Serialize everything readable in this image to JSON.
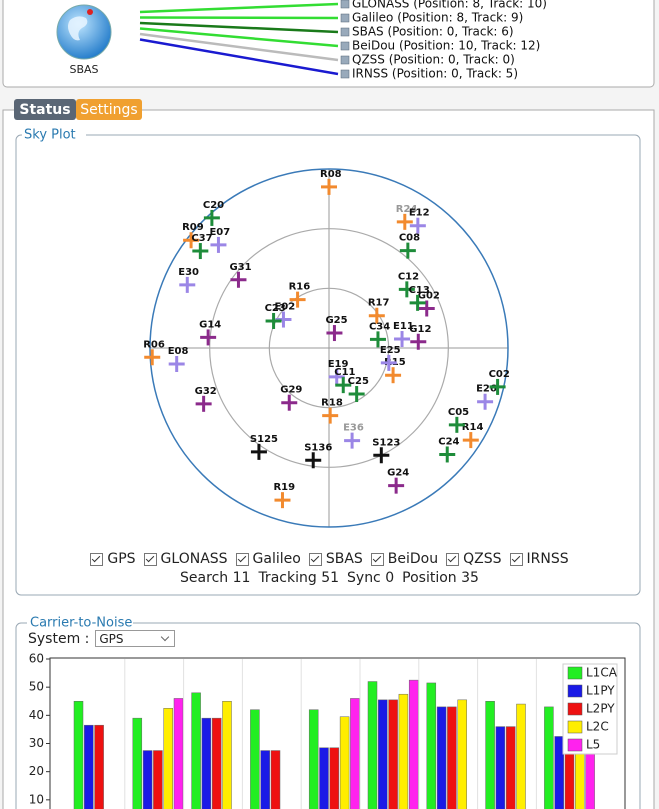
{
  "top_panel": {
    "icon_label": "SBAS",
    "systems": [
      {
        "text": "GLONASS (Position: 8, Track: 10)",
        "color": "#33dd33"
      },
      {
        "text": "Galileo (Position: 8, Track: 9)",
        "color": "#33dd33"
      },
      {
        "text": "SBAS (Position: 0, Track: 6)",
        "color": "#1a7a1a"
      },
      {
        "text": "BeiDou (Position: 10, Track: 12)",
        "color": "#33dd33"
      },
      {
        "text": "QZSS (Position: 0, Track: 0)",
        "color": "#bbbbbb"
      },
      {
        "text": "IRNSS (Position: 0, Track: 5)",
        "color": "#1a1ad0"
      }
    ]
  },
  "tabs": [
    "Status",
    "Settings"
  ],
  "status_line": [
    {
      "label": "Search",
      "value": 11
    },
    {
      "label": "Tracking",
      "value": 51
    },
    {
      "label": "Sync",
      "value": 0
    },
    {
      "label": "Position",
      "value": 35
    }
  ],
  "system_label": "System :",
  "system_value": "GPS",
  "chart_data": [
    {
      "type": "polar-scatter",
      "title": "Sky Plot",
      "elevation_rings": [
        60,
        30,
        0
      ],
      "series": [
        {
          "name": "GPS",
          "color": "#8b2a8b",
          "points": [
            {
              "name": "G31",
              "azimuth": 307,
              "elevation": 33
            },
            {
              "name": "G02",
              "azimuth": 68,
              "elevation": 37
            },
            {
              "name": "G25",
              "azimuth": 20,
              "elevation": 82
            },
            {
              "name": "G14",
              "azimuth": 275,
              "elevation": 29
            },
            {
              "name": "G12",
              "azimuth": 86,
              "elevation": 45
            },
            {
              "name": "G32",
              "azimuth": 246,
              "elevation": 21
            },
            {
              "name": "G29",
              "azimuth": 216,
              "elevation": 56
            },
            {
              "name": "G24",
              "azimuth": 154,
              "elevation": 13
            }
          ]
        },
        {
          "name": "GLONASS",
          "color": "#f28a2e",
          "points": [
            {
              "name": "R08",
              "azimuth": 0,
              "elevation": 9
            },
            {
              "name": "R09",
              "azimuth": 308,
              "elevation": 2
            },
            {
              "name": "R24",
              "azimuth": 31,
              "elevation": 16,
              "dim": true
            },
            {
              "name": "R16",
              "azimuth": 327,
              "elevation": 61
            },
            {
              "name": "R17",
              "azimuth": 56,
              "elevation": 61
            },
            {
              "name": "R06",
              "azimuth": 267,
              "elevation": 1
            },
            {
              "name": "R15",
              "azimuth": 113,
              "elevation": 55
            },
            {
              "name": "R18",
              "azimuth": 179,
              "elevation": 56
            },
            {
              "name": "R14",
              "azimuth": 123,
              "elevation": 5
            },
            {
              "name": "R19",
              "azimuth": 197,
              "elevation": 10
            }
          ]
        },
        {
          "name": "Galileo",
          "color": "#9b86e6",
          "points": [
            {
              "name": "E07",
              "azimuth": 313,
              "elevation": 14
            },
            {
              "name": "E12",
              "azimuth": 36,
              "elevation": 14
            },
            {
              "name": "E30",
              "azimuth": 294,
              "elevation": 12
            },
            {
              "name": "E02",
              "azimuth": 302,
              "elevation": 63
            },
            {
              "name": "E11",
              "azimuth": 83,
              "elevation": 53
            },
            {
              "name": "E08",
              "azimuth": 264,
              "elevation": 13
            },
            {
              "name": "E25",
              "azimuth": 104,
              "elevation": 59
            },
            {
              "name": "E19",
              "azimuth": 165,
              "elevation": 75
            },
            {
              "name": "E26",
              "azimuth": 109,
              "elevation": 7
            },
            {
              "name": "E36",
              "azimuth": 166,
              "elevation": 42,
              "dim": true
            }
          ]
        },
        {
          "name": "SBAS",
          "color": "#111111",
          "points": [
            {
              "name": "S125",
              "azimuth": 214,
              "elevation": 27
            },
            {
              "name": "S136",
              "azimuth": 188,
              "elevation": 33
            },
            {
              "name": "S123",
              "azimuth": 154,
              "elevation": 30
            }
          ]
        },
        {
          "name": "BeiDou",
          "color": "#1e8c3a",
          "points": [
            {
              "name": "C20",
              "azimuth": 318,
              "elevation": 2
            },
            {
              "name": "C37",
              "azimuth": 307,
              "elevation": 9
            },
            {
              "name": "C08",
              "azimuth": 39,
              "elevation": 27
            },
            {
              "name": "C12",
              "azimuth": 53,
              "elevation": 41
            },
            {
              "name": "C13",
              "azimuth": 63,
              "elevation": 40
            },
            {
              "name": "C23",
              "azimuth": 296,
              "elevation": 59
            },
            {
              "name": "C34",
              "azimuth": 80,
              "elevation": 65
            },
            {
              "name": "C11",
              "azimuth": 159,
              "elevation": 70
            },
            {
              "name": "C25",
              "azimuth": 149,
              "elevation": 63
            },
            {
              "name": "C02",
              "azimuth": 103,
              "elevation": 3
            },
            {
              "name": "C05",
              "azimuth": 121,
              "elevation": 15
            },
            {
              "name": "C24",
              "azimuth": 132,
              "elevation": 10
            }
          ]
        },
        {
          "name": "QZSS",
          "color": "#d04040",
          "points": []
        },
        {
          "name": "IRNSS",
          "color": "#2060c0",
          "points": []
        }
      ]
    },
    {
      "type": "bar",
      "title": "Carrier-to-Noise",
      "categories": [
        null,
        null,
        null,
        null,
        null,
        null,
        null,
        null,
        null
      ],
      "series": [
        {
          "name": "L1CA",
          "color": "#22ee22",
          "values": [
            45,
            39,
            48,
            42,
            42,
            52,
            51.5,
            45,
            43
          ]
        },
        {
          "name": "L1PY",
          "color": "#1a1ae6",
          "values": [
            36.5,
            27.5,
            39,
            27.5,
            28.5,
            45.5,
            43,
            36,
            32.5
          ]
        },
        {
          "name": "L2PY",
          "color": "#ee1111",
          "values": [
            36.5,
            27.5,
            39,
            27.5,
            28.5,
            45.5,
            43,
            36,
            32.5
          ]
        },
        {
          "name": "L2C",
          "color": "#ffee00",
          "values": [
            null,
            42.5,
            45,
            null,
            39.5,
            47.5,
            45.5,
            44,
            35
          ]
        },
        {
          "name": "L5",
          "color": "#ff22ee",
          "values": [
            null,
            46,
            null,
            null,
            46,
            52.5,
            null,
            null,
            35
          ]
        }
      ],
      "ylim": [
        0,
        60
      ],
      "yticks": [
        10,
        20,
        30,
        40,
        50,
        60
      ],
      "legend": "top-right"
    }
  ]
}
